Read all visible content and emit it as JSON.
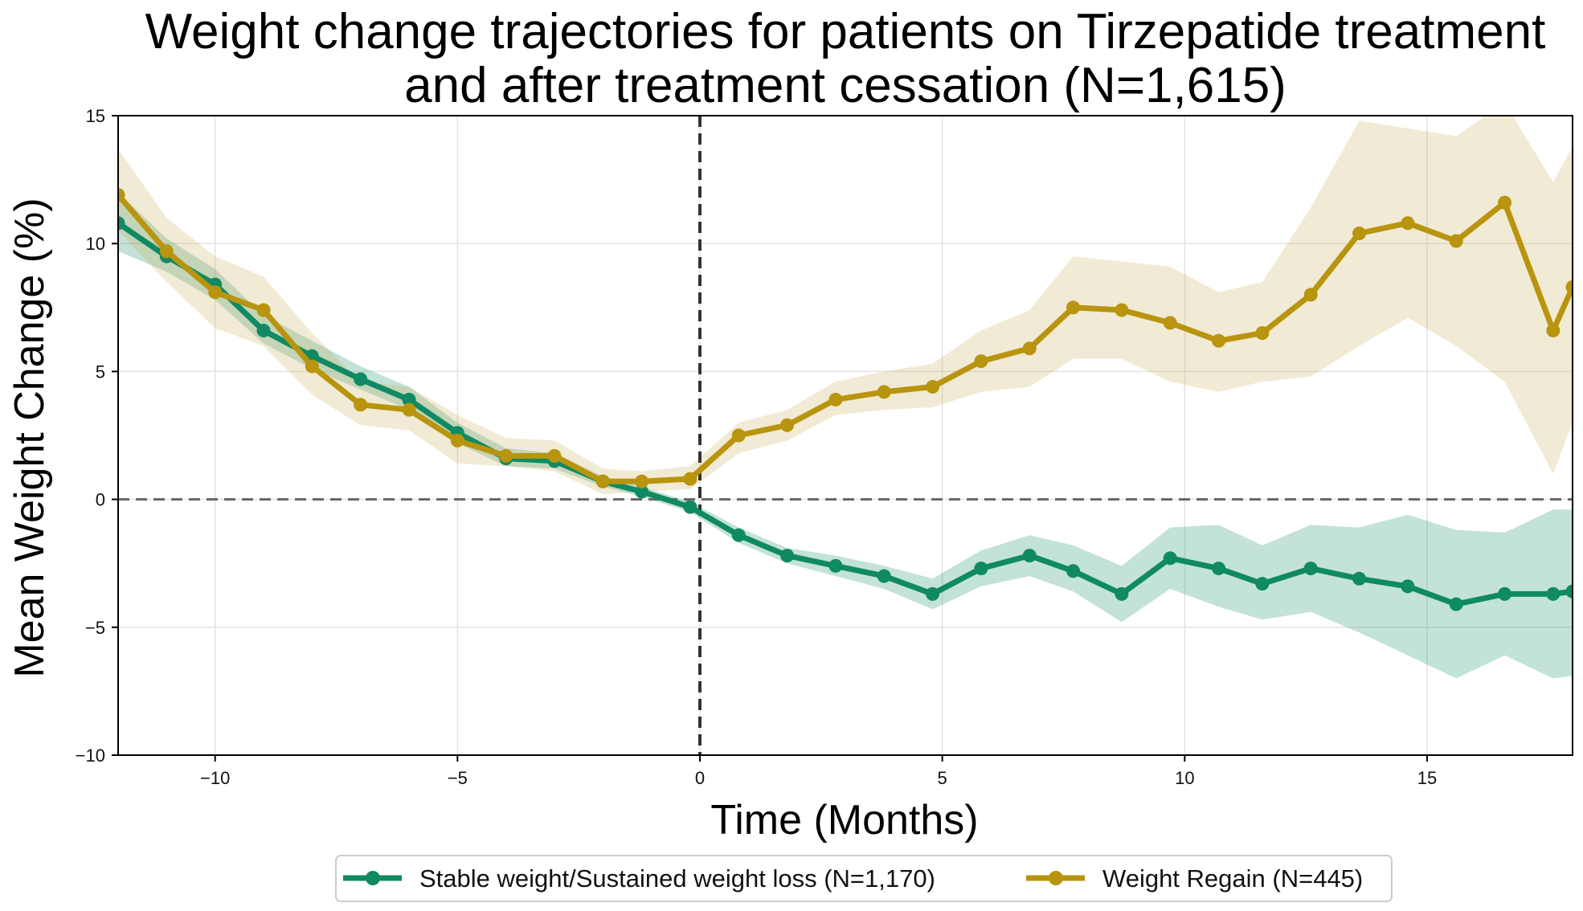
{
  "chart_data": {
    "type": "line",
    "title_lines": [
      "Weight change trajectories for patients on Tirzepatide treatment",
      "and after treatment cessation (N=1,615)"
    ],
    "xlabel": "Time (Months)",
    "ylabel": "Mean Weight Change (%)",
    "xlim": [
      -12,
      18
    ],
    "ylim": [
      -10,
      15
    ],
    "x_ticks": [
      -10,
      -5,
      0,
      5,
      10,
      15
    ],
    "x_tick_labels": [
      "−10",
      "−5",
      "0",
      "5",
      "10",
      "15"
    ],
    "y_ticks": [
      -10,
      -5,
      0,
      5,
      10,
      15
    ],
    "y_tick_labels": [
      "−10",
      "−5",
      "0",
      "5",
      "10",
      "15"
    ],
    "grid": true,
    "reference_lines": [
      {
        "orientation": "horizontal",
        "value": 0,
        "style": "dashed"
      },
      {
        "orientation": "vertical",
        "value": 0,
        "style": "dashed"
      }
    ],
    "legend_position": "bottom-center",
    "series": [
      {
        "name": "Stable weight/Sustained weight loss (N=1,170)",
        "color": "#0f8a62",
        "band_color": "#0f8a62",
        "points": [
          [
            -12,
            10.8
          ],
          [
            -11,
            9.5
          ],
          [
            -10,
            8.4
          ],
          [
            -9,
            6.6
          ],
          [
            -8,
            5.6
          ],
          [
            -7,
            4.7
          ],
          [
            -6,
            3.9
          ],
          [
            -5,
            2.6
          ],
          [
            -4,
            1.6
          ],
          [
            -3,
            1.5
          ],
          [
            -2,
            0.7
          ],
          [
            -1.2,
            0.3
          ],
          [
            -0.2,
            -0.3
          ],
          [
            0.8,
            -1.4
          ],
          [
            1.8,
            -2.2
          ],
          [
            2.8,
            -2.6
          ],
          [
            3.8,
            -3.0
          ],
          [
            4.8,
            -3.7
          ],
          [
            5.8,
            -2.7
          ],
          [
            6.8,
            -2.2
          ],
          [
            7.7,
            -2.8
          ],
          [
            8.7,
            -3.7
          ],
          [
            9.7,
            -2.3
          ],
          [
            10.7,
            -2.7
          ],
          [
            11.6,
            -3.3
          ],
          [
            12.6,
            -2.7
          ],
          [
            13.6,
            -3.1
          ],
          [
            14.6,
            -3.4
          ],
          [
            15.6,
            -4.1
          ],
          [
            16.6,
            -3.7
          ],
          [
            17.6,
            -3.7
          ],
          [
            18,
            -3.6
          ]
        ],
        "band": [
          [
            -12,
            9.7,
            12.0
          ],
          [
            -11,
            8.9,
            10.2
          ],
          [
            -10,
            7.8,
            9.0
          ],
          [
            -9,
            6.1,
            7.2
          ],
          [
            -8,
            5.1,
            6.2
          ],
          [
            -7,
            4.3,
            5.2
          ],
          [
            -6,
            3.5,
            4.4
          ],
          [
            -5,
            2.2,
            3.0
          ],
          [
            -4,
            1.3,
            2.0
          ],
          [
            -3,
            1.2,
            1.8
          ],
          [
            -2,
            0.5,
            0.9
          ],
          [
            -1.2,
            0.1,
            0.5
          ],
          [
            -0.2,
            -0.5,
            -0.1
          ],
          [
            0.8,
            -1.7,
            -1.1
          ],
          [
            1.8,
            -2.5,
            -1.9
          ],
          [
            2.8,
            -3.0,
            -2.2
          ],
          [
            3.8,
            -3.5,
            -2.6
          ],
          [
            4.8,
            -4.3,
            -3.1
          ],
          [
            5.8,
            -3.4,
            -2.0
          ],
          [
            6.8,
            -3.0,
            -1.4
          ],
          [
            7.7,
            -3.6,
            -1.8
          ],
          [
            8.7,
            -4.8,
            -2.6
          ],
          [
            9.7,
            -3.5,
            -1.1
          ],
          [
            10.7,
            -4.2,
            -1.0
          ],
          [
            11.6,
            -4.7,
            -1.8
          ],
          [
            12.6,
            -4.4,
            -1.0
          ],
          [
            13.6,
            -5.2,
            -1.1
          ],
          [
            14.6,
            -6.1,
            -0.6
          ],
          [
            15.6,
            -7.0,
            -1.2
          ],
          [
            16.6,
            -6.1,
            -1.3
          ],
          [
            17.6,
            -7.0,
            -0.4
          ],
          [
            18,
            -6.9,
            -0.4
          ]
        ]
      },
      {
        "name": "Weight Regain (N=445)",
        "color": "#b8940f",
        "band_color": "#c8ad55",
        "points": [
          [
            -12,
            11.9
          ],
          [
            -11,
            9.7
          ],
          [
            -10,
            8.1
          ],
          [
            -9,
            7.4
          ],
          [
            -8,
            5.2
          ],
          [
            -7,
            3.7
          ],
          [
            -6,
            3.5
          ],
          [
            -5,
            2.3
          ],
          [
            -4,
            1.7
          ],
          [
            -3,
            1.7
          ],
          [
            -2,
            0.7
          ],
          [
            -1.2,
            0.7
          ],
          [
            -0.2,
            0.8
          ],
          [
            0.8,
            2.5
          ],
          [
            1.8,
            2.9
          ],
          [
            2.8,
            3.9
          ],
          [
            3.8,
            4.2
          ],
          [
            4.8,
            4.4
          ],
          [
            5.8,
            5.4
          ],
          [
            6.8,
            5.9
          ],
          [
            7.7,
            7.5
          ],
          [
            8.7,
            7.4
          ],
          [
            9.7,
            6.9
          ],
          [
            10.7,
            6.2
          ],
          [
            11.6,
            6.5
          ],
          [
            12.6,
            8.0
          ],
          [
            13.6,
            10.4
          ],
          [
            14.6,
            10.8
          ],
          [
            15.6,
            10.1
          ],
          [
            16.6,
            11.6
          ],
          [
            17.6,
            6.6
          ],
          [
            18,
            8.3
          ]
        ],
        "band": [
          [
            -12,
            10.5,
            13.7
          ],
          [
            -11,
            8.5,
            11.0
          ],
          [
            -10,
            6.7,
            9.5
          ],
          [
            -9,
            6.0,
            8.7
          ],
          [
            -8,
            4.1,
            6.5
          ],
          [
            -7,
            2.9,
            4.6
          ],
          [
            -6,
            2.7,
            4.4
          ],
          [
            -5,
            1.4,
            3.3
          ],
          [
            -4,
            1.3,
            2.4
          ],
          [
            -3,
            1.1,
            2.3
          ],
          [
            -2,
            0.2,
            1.2
          ],
          [
            -1.2,
            0.3,
            1.1
          ],
          [
            -0.2,
            0.4,
            1.3
          ],
          [
            0.8,
            1.8,
            3.0
          ],
          [
            1.8,
            2.3,
            3.5
          ],
          [
            2.8,
            3.3,
            4.6
          ],
          [
            3.8,
            3.5,
            5.0
          ],
          [
            4.8,
            3.6,
            5.3
          ],
          [
            5.8,
            4.2,
            6.6
          ],
          [
            6.8,
            4.4,
            7.4
          ],
          [
            7.7,
            5.5,
            9.5
          ],
          [
            8.7,
            5.5,
            9.3
          ],
          [
            9.7,
            4.6,
            9.1
          ],
          [
            10.7,
            4.2,
            8.1
          ],
          [
            11.6,
            4.6,
            8.5
          ],
          [
            12.6,
            4.8,
            11.4
          ],
          [
            13.6,
            6.0,
            14.8
          ],
          [
            14.6,
            7.1,
            14.5
          ],
          [
            15.6,
            6.0,
            14.2
          ],
          [
            16.6,
            4.6,
            15.5
          ],
          [
            17.6,
            1.0,
            12.4
          ],
          [
            18,
            3.0,
            13.8
          ]
        ]
      }
    ]
  }
}
